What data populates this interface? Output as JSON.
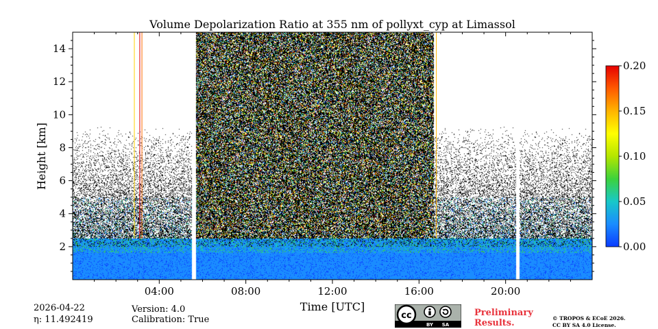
{
  "chart_data": {
    "type": "heatmap",
    "title": "Volume Depolarization Ratio at 355 nm of pollyxt_cyp at Limassol",
    "xlabel": "Time [UTC]",
    "ylabel": "Height [km]",
    "xlim_hours": [
      0,
      24
    ],
    "ylim_km": [
      0,
      15
    ],
    "x_ticks": [
      {
        "hour": 4,
        "label": "04:00"
      },
      {
        "hour": 8,
        "label": "08:00"
      },
      {
        "hour": 12,
        "label": "12:00"
      },
      {
        "hour": 16,
        "label": "16:00"
      },
      {
        "hour": 20,
        "label": "20:00"
      }
    ],
    "y_ticks": [
      {
        "value": 2,
        "label": "2"
      },
      {
        "value": 4,
        "label": "4"
      },
      {
        "value": 6,
        "label": "6"
      },
      {
        "value": 8,
        "label": "8"
      },
      {
        "value": 10,
        "label": "10"
      },
      {
        "value": 12,
        "label": "12"
      },
      {
        "value": 14,
        "label": "14"
      }
    ],
    "colorbar": {
      "min": 0.0,
      "max": 0.2,
      "ticks": [
        "0.00",
        "0.05",
        "0.10",
        "0.15",
        "0.20"
      ],
      "colors": [
        "#0a3cff",
        "#1a8cff",
        "#18c8c8",
        "#3cd23c",
        "#b4e600",
        "#ffff00",
        "#ffb400",
        "#ff5a00",
        "#e60000"
      ]
    },
    "data_gaps_hours": [
      [
        5.5,
        5.7
      ],
      [
        20.5,
        20.65
      ]
    ],
    "regions": [
      {
        "name": "low-level aerosol layer",
        "start_hour": 0,
        "end_hour": 24,
        "top_km": 2.5,
        "depol_typical": 0.02
      },
      {
        "name": "daytime noisy signal",
        "start_hour": 5.7,
        "end_hour": 16.7,
        "top_km": 15,
        "depol_typical": 0.1
      },
      {
        "name": "night sparse noise",
        "start_hour": 0,
        "end_hour": 5.5,
        "top_km": 8,
        "depol_typical": 0.05
      }
    ]
  },
  "footer": {
    "date": "2026-04-22",
    "eta": "η: 11.492419",
    "version": "Version: 4.0",
    "calibration": "Calibration: True",
    "preliminary_line1": "Preliminary",
    "preliminary_line2": "Results.",
    "copyright_line1": "© TROPOS & ECoE 2026.",
    "copyright_line2": "CC BY SA 4.0 License.",
    "license_badge": [
      "cc",
      "BY",
      "SA"
    ]
  }
}
